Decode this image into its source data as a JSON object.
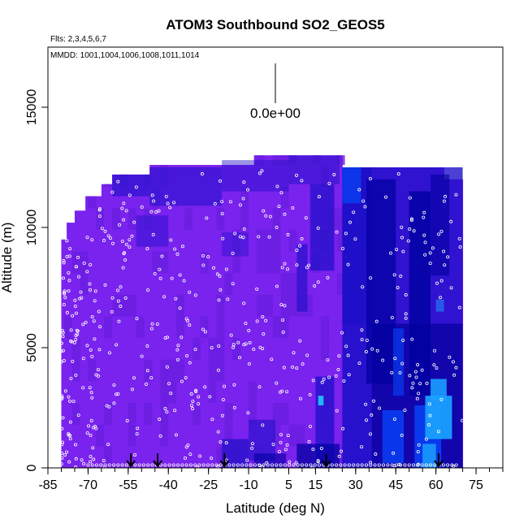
{
  "chart_data": {
    "type": "heatmap",
    "title": "ATOM3 Southbound SO2_GEOS5",
    "flights_note": "Flts: 2,3,4,5,6,7",
    "dates_note": "MMDD: 1001,1004,1006,1008,1011,1014",
    "xlabel": "Latitude (deg N)",
    "ylabel": "Altitude (m)",
    "xlim": [
      -85,
      85
    ],
    "ylim": [
      0,
      17500
    ],
    "x_ticks": [
      -85,
      -70,
      -55,
      -40,
      -25,
      -10,
      5,
      15,
      30,
      45,
      60,
      75
    ],
    "y_ticks": [
      0,
      5000,
      10000,
      15000
    ],
    "key_value_label": "0.0e+00",
    "colors": {
      "background_purple": "#7a22ee",
      "violet": "#6a1ee0",
      "dark_blue": "#1e10c8",
      "navy": "#0000a0",
      "blue": "#0a3cf0",
      "sky": "#1aa0ff",
      "cyan": "#21c8ff"
    },
    "profile_arrow_latitudes": [
      -54,
      -44,
      -19,
      19,
      61
    ],
    "coverage_top_altitude_by_latitude": [
      {
        "lat_from": -80,
        "lat_to": -78,
        "top": 9500
      },
      {
        "lat_from": -78,
        "lat_to": -75,
        "top": 10200
      },
      {
        "lat_from": -75,
        "lat_to": -71,
        "top": 10700
      },
      {
        "lat_from": -71,
        "lat_to": -65,
        "top": 11300
      },
      {
        "lat_from": -65,
        "lat_to": -61,
        "top": 11800
      },
      {
        "lat_from": -61,
        "lat_to": -47,
        "top": 12200
      },
      {
        "lat_from": -47,
        "lat_to": -8,
        "top": 12600
      },
      {
        "lat_from": -8,
        "lat_to": 25,
        "top": 13000
      },
      {
        "lat_from": 25,
        "lat_to": 63,
        "top": 12500
      },
      {
        "lat_from": 63,
        "lat_to": 70,
        "top": 12000
      }
    ],
    "series": [
      {
        "name": "model SO2 along flight track",
        "values": "colour field"
      },
      {
        "name": "sample locations",
        "values": "white open circles"
      }
    ]
  }
}
